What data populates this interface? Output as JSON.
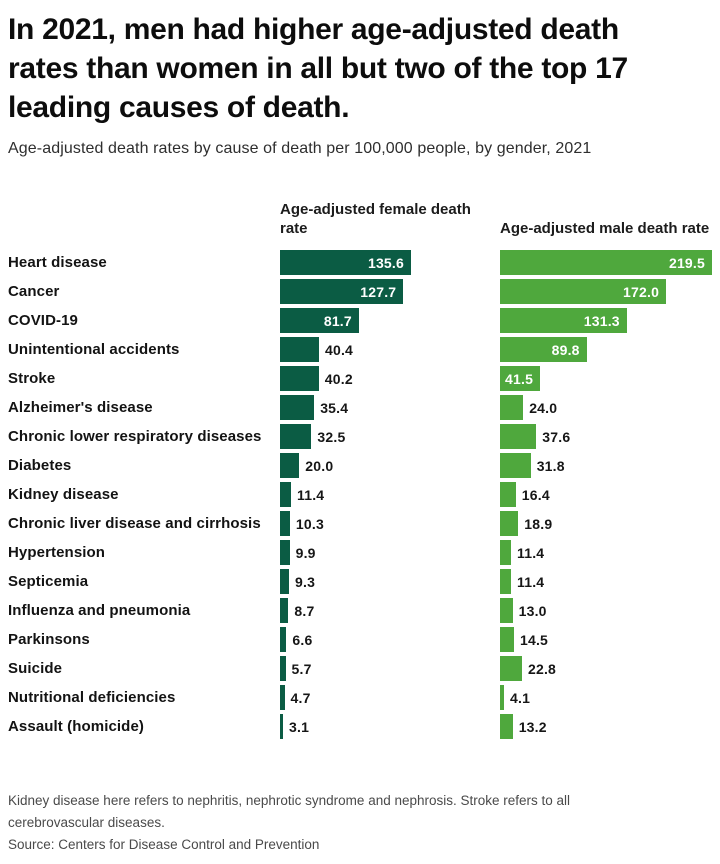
{
  "title": "In 2021, men had higher age-adjusted death rates than women in all but two of the top 17 leading causes of death.",
  "subtitle": "Age-adjusted death rates by cause of death per 100,000 people, by gender, 2021",
  "chart_data": {
    "type": "bar",
    "orientation": "horizontal",
    "title": "In 2021, men had higher age-adjusted death rates than women in all but two of the top 17 leading causes of death.",
    "subtitle": "Age-adjusted death rates by cause of death per 100,000 people, by gender, 2021",
    "xlabel": "",
    "ylabel": "",
    "xlim": [
      0,
      219.5
    ],
    "grid": false,
    "legend_position": "column-headers",
    "value_format": "one-decimal",
    "categories": [
      "Heart disease",
      "Cancer",
      "COVID-19",
      "Unintentional accidents",
      "Stroke",
      "Alzheimer's disease",
      "Chronic lower respiratory diseases",
      "Diabetes",
      "Kidney disease",
      "Chronic liver disease and cirrhosis",
      "Hypertension",
      "Septicemia",
      "Influenza and pneumonia",
      "Parkinsons",
      "Suicide",
      "Nutritional deficiencies",
      "Assault (homicide)"
    ],
    "series": [
      {
        "name": "Age-adjusted female death rate",
        "color": "#0b5c44",
        "values": [
          135.6,
          127.7,
          81.7,
          40.4,
          40.2,
          35.4,
          32.5,
          20.0,
          11.4,
          10.3,
          9.9,
          9.3,
          8.7,
          6.6,
          5.7,
          4.7,
          3.1
        ],
        "label_inside": [
          true,
          true,
          true,
          false,
          false,
          false,
          false,
          false,
          false,
          false,
          false,
          false,
          false,
          false,
          false,
          false,
          false
        ]
      },
      {
        "name": "Age-adjusted male death rate",
        "color": "#4fa83d",
        "values": [
          219.5,
          172.0,
          131.3,
          89.8,
          41.5,
          24.0,
          37.6,
          31.8,
          16.4,
          18.9,
          11.4,
          11.4,
          13.0,
          14.5,
          22.8,
          4.1,
          13.2
        ],
        "label_inside": [
          true,
          true,
          true,
          true,
          true,
          false,
          false,
          false,
          false,
          false,
          false,
          false,
          false,
          false,
          false,
          false,
          false
        ]
      }
    ]
  },
  "notes": {
    "footnote": "Kidney disease here refers to nephritis, nephrotic syndrome and nephrosis. Stroke refers to all cerebrovascular diseases."
  },
  "source": "Source: Centers for Disease Control and Prevention"
}
